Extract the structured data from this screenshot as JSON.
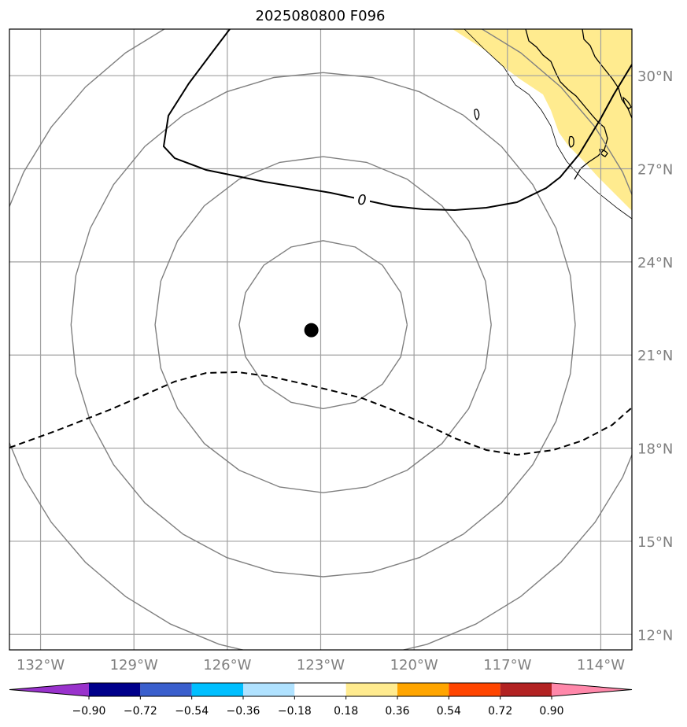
{
  "figure": {
    "title": "2025080800 F096"
  },
  "map": {
    "lon_range": [
      -133.0,
      -113.0
    ],
    "lat_range": [
      11.5,
      31.5
    ],
    "lon_ticks": [
      -132,
      -129,
      -126,
      -123,
      -120,
      -117,
      -114
    ],
    "lon_tick_labels": [
      "132°W",
      "129°W",
      "126°W",
      "123°W",
      "120°W",
      "117°W",
      "114°W"
    ],
    "lat_ticks": [
      12,
      15,
      18,
      21,
      24,
      27,
      30
    ],
    "lat_tick_labels": [
      "12°N",
      "15°N",
      "18°N",
      "21°N",
      "24°N",
      "27°N",
      "30°N"
    ],
    "gridlines": true,
    "grid_color": "#a0a0a0",
    "land_fill_color": "#ffeb8f",
    "storm_center": {
      "lon": -123.3,
      "lat": 21.8,
      "marker": "filled-circle",
      "color": "#000000"
    },
    "range_rings_deg": [
      2.7,
      5.4,
      8.1,
      10.8
    ],
    "range_ring_color": "#808080",
    "contours": [
      {
        "label": "0",
        "style": "solid",
        "color": "#000000"
      },
      {
        "label": "",
        "style": "dashed",
        "color": "#000000"
      }
    ]
  },
  "colorbar": {
    "orientation": "horizontal",
    "extend": "both",
    "boundaries": [
      -0.9,
      -0.72,
      -0.54,
      -0.36,
      -0.18,
      0.18,
      0.36,
      0.54,
      0.72,
      0.9
    ],
    "tick_labels": [
      "−0.90",
      "−0.72",
      "−0.54",
      "−0.36",
      "−0.18",
      "0.18",
      "0.36",
      "0.54",
      "0.72",
      "0.90"
    ],
    "under_color": "#9932cc",
    "over_color": "#ff88aa",
    "colors": [
      "#00008b",
      "#3a5fcd",
      "#00bfff",
      "#b0e2ff",
      "#ffffff",
      "#ffeb8f",
      "#ffa500",
      "#ff4500",
      "#b22222"
    ]
  }
}
